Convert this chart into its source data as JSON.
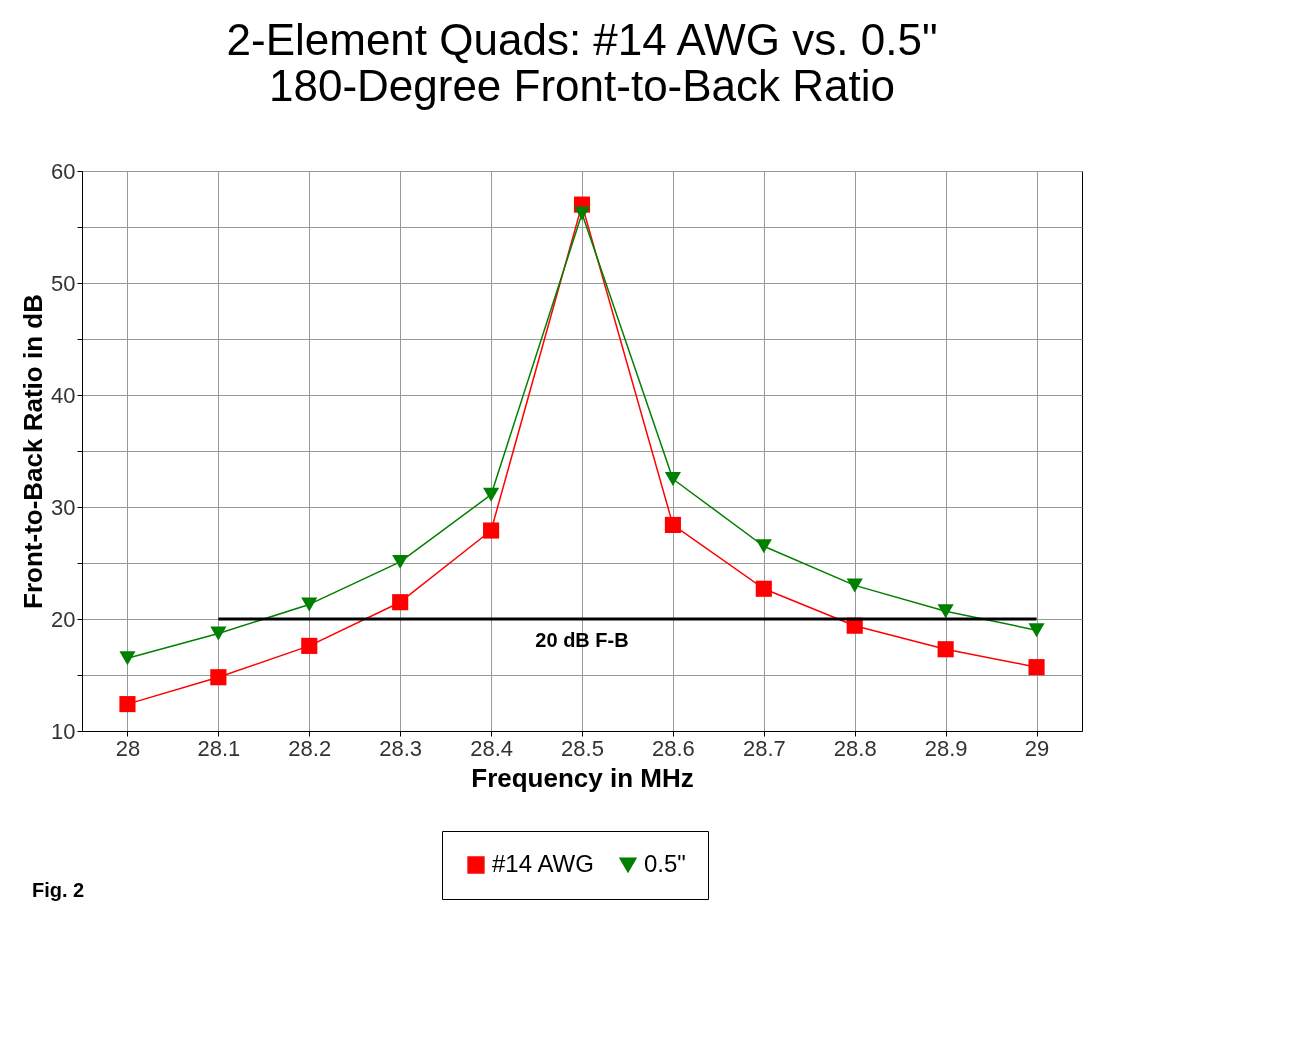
{
  "chart_data": {
    "type": "line",
    "title": [
      "2-Element Quads:  #14 AWG vs. 0.5\"",
      "180-Degree Front-to-Back Ratio"
    ],
    "xlabel": "Frequency in MHz",
    "ylabel": "Front-to-Back Ratio in dB",
    "x": [
      28,
      28.1,
      28.2,
      28.3,
      28.4,
      28.5,
      28.6,
      28.7,
      28.8,
      28.9,
      29
    ],
    "series": [
      {
        "name": "#14 AWG",
        "color": "#ff0000",
        "marker": "square",
        "values": [
          12.4,
          14.8,
          17.6,
          21.5,
          27.9,
          57.0,
          28.4,
          22.7,
          19.4,
          17.3,
          15.7
        ]
      },
      {
        "name": "0.5\"",
        "color": "#008000",
        "marker": "triangle",
        "values": [
          16.5,
          18.7,
          21.3,
          25.1,
          31.1,
          56.2,
          32.5,
          26.5,
          23.0,
          20.7,
          19.0
        ]
      },
      {
        "color": "#000000",
        "marker": "none",
        "x": [
          28.1,
          29
        ],
        "values": [
          20,
          20
        ]
      }
    ],
    "annotations": [
      {
        "text": "20 dB F-B",
        "x": 28.5,
        "y": 20
      },
      "Fig. 2"
    ],
    "xlim": [
      27.95,
      29.05
    ],
    "xticks": [
      28,
      28.1,
      28.2,
      28.3,
      28.4,
      28.5,
      28.6,
      28.7,
      28.8,
      28.9,
      29
    ],
    "ylim": [
      10,
      60
    ],
    "yticks": [
      10,
      {
        "value": 15,
        "label": null
      },
      20,
      {
        "value": 25,
        "label": null
      },
      30,
      {
        "value": 35,
        "label": null
      },
      40,
      {
        "value": 45,
        "label": null
      },
      50,
      {
        "value": 55,
        "label": null
      },
      60
    ],
    "grid": true,
    "legend": "bottom",
    "line_style": "solid"
  }
}
